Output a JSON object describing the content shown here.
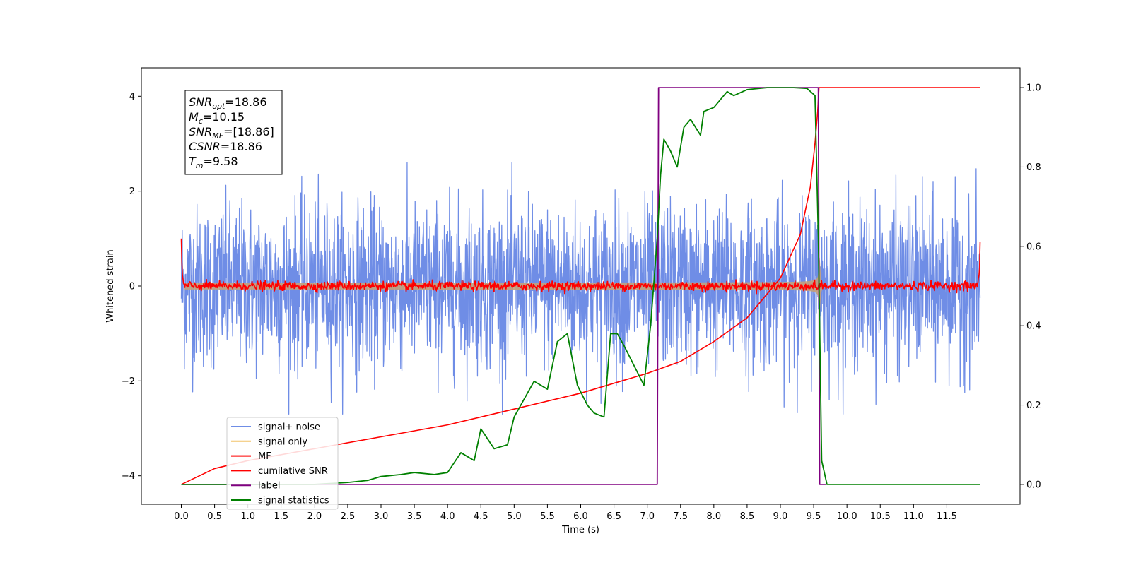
{
  "chart_data": {
    "type": "line",
    "xlabel": "Time (s)",
    "ylabel": "Whitened strain",
    "x_ticks": [
      "0.0",
      "0.5",
      "1.0",
      "1.5",
      "2.0",
      "2.5",
      "3.0",
      "3.5",
      "4.0",
      "4.5",
      "5.0",
      "5.5",
      "6.0",
      "6.5",
      "7.0",
      "7.5",
      "8.0",
      "8.5",
      "9.0",
      "9.5",
      "10.0",
      "10.5",
      "11.0",
      "11.5"
    ],
    "xlim": [
      -0.6,
      12.6
    ],
    "ylim_left": [
      -4.6,
      4.6
    ],
    "y_ticks_left": [
      -4,
      -2,
      0,
      2,
      4
    ],
    "ylim_right": [
      -0.05,
      1.05
    ],
    "y_ticks_right": [
      0.0,
      0.2,
      0.4,
      0.6,
      0.8,
      1.0
    ],
    "x_range": [
      0.0,
      12.0
    ],
    "grid": false,
    "legend_position": "lower-left",
    "colors": {
      "signal_noise": "#6f8de6",
      "signal_only": "#f2c46a",
      "overlap": "#c4a07a",
      "mf": "#ff0000",
      "csnr": "#ff0000",
      "label": "#800080",
      "statistics": "#008000"
    },
    "series": [
      {
        "name": "signal+ noise",
        "axis": "left",
        "kind": "noise",
        "std": 0.85,
        "extremes": [
          -3.1,
          3.0
        ]
      },
      {
        "name": "signal only",
        "axis": "left",
        "kind": "chirp",
        "merger_time": 9.58,
        "peak_amplitude": 1.2
      },
      {
        "name": "MF",
        "axis": "left",
        "kind": "matched_filter",
        "baseline_std": 0.05,
        "start_value": 1.0,
        "end_value": 0.9
      },
      {
        "name": "cumilative SNR",
        "axis": "right",
        "kind": "cumulative",
        "points": [
          [
            0.0,
            0.0
          ],
          [
            0.5,
            0.04
          ],
          [
            1.0,
            0.06
          ],
          [
            2.0,
            0.09
          ],
          [
            3.0,
            0.12
          ],
          [
            4.0,
            0.15
          ],
          [
            5.0,
            0.19
          ],
          [
            6.0,
            0.23
          ],
          [
            7.0,
            0.28
          ],
          [
            7.5,
            0.31
          ],
          [
            8.0,
            0.36
          ],
          [
            8.5,
            0.42
          ],
          [
            9.0,
            0.52
          ],
          [
            9.3,
            0.63
          ],
          [
            9.45,
            0.75
          ],
          [
            9.52,
            0.86
          ],
          [
            9.56,
            0.94
          ],
          [
            9.58,
            1.0
          ],
          [
            12.0,
            1.0
          ]
        ]
      },
      {
        "name": "label",
        "axis": "right",
        "points": [
          [
            0.0,
            0.0
          ],
          [
            7.15,
            0.0
          ],
          [
            7.17,
            1.0
          ],
          [
            9.57,
            1.0
          ],
          [
            9.59,
            0.0
          ],
          [
            9.68,
            0.0
          ]
        ]
      },
      {
        "name": "signal statistics",
        "axis": "right",
        "points": [
          [
            0.0,
            0.0
          ],
          [
            1.0,
            0.0
          ],
          [
            2.0,
            0.0
          ],
          [
            2.5,
            0.005
          ],
          [
            2.8,
            0.01
          ],
          [
            3.0,
            0.02
          ],
          [
            3.3,
            0.025
          ],
          [
            3.5,
            0.03
          ],
          [
            3.8,
            0.025
          ],
          [
            4.0,
            0.03
          ],
          [
            4.2,
            0.08
          ],
          [
            4.4,
            0.06
          ],
          [
            4.5,
            0.14
          ],
          [
            4.7,
            0.09
          ],
          [
            4.9,
            0.1
          ],
          [
            5.0,
            0.17
          ],
          [
            5.3,
            0.26
          ],
          [
            5.5,
            0.24
          ],
          [
            5.65,
            0.36
          ],
          [
            5.8,
            0.38
          ],
          [
            5.95,
            0.25
          ],
          [
            6.1,
            0.2
          ],
          [
            6.2,
            0.18
          ],
          [
            6.35,
            0.17
          ],
          [
            6.45,
            0.38
          ],
          [
            6.55,
            0.38
          ],
          [
            6.65,
            0.35
          ],
          [
            6.8,
            0.3
          ],
          [
            6.95,
            0.25
          ],
          [
            7.05,
            0.4
          ],
          [
            7.15,
            0.62
          ],
          [
            7.2,
            0.78
          ],
          [
            7.25,
            0.87
          ],
          [
            7.35,
            0.84
          ],
          [
            7.45,
            0.8
          ],
          [
            7.55,
            0.9
          ],
          [
            7.65,
            0.92
          ],
          [
            7.8,
            0.88
          ],
          [
            7.85,
            0.94
          ],
          [
            8.0,
            0.95
          ],
          [
            8.1,
            0.97
          ],
          [
            8.2,
            0.99
          ],
          [
            8.3,
            0.98
          ],
          [
            8.5,
            0.995
          ],
          [
            8.8,
            1.0
          ],
          [
            9.2,
            1.0
          ],
          [
            9.4,
            0.998
          ],
          [
            9.52,
            0.98
          ],
          [
            9.57,
            0.62
          ],
          [
            9.62,
            0.06
          ],
          [
            9.7,
            0.0
          ],
          [
            12.0,
            0.0
          ]
        ]
      }
    ]
  },
  "annotation": {
    "lines": [
      {
        "var": "SNR",
        "sub": "opt",
        "value": "=18.86"
      },
      {
        "var": "M",
        "sub": "c",
        "value": "=10.15"
      },
      {
        "var": "SNR",
        "sub": "MF",
        "value": "=[18.86]"
      },
      {
        "var": "CSNR",
        "sub": "",
        "value": "=18.86"
      },
      {
        "var": "T",
        "sub": "m",
        "value": "=9.58"
      }
    ]
  }
}
